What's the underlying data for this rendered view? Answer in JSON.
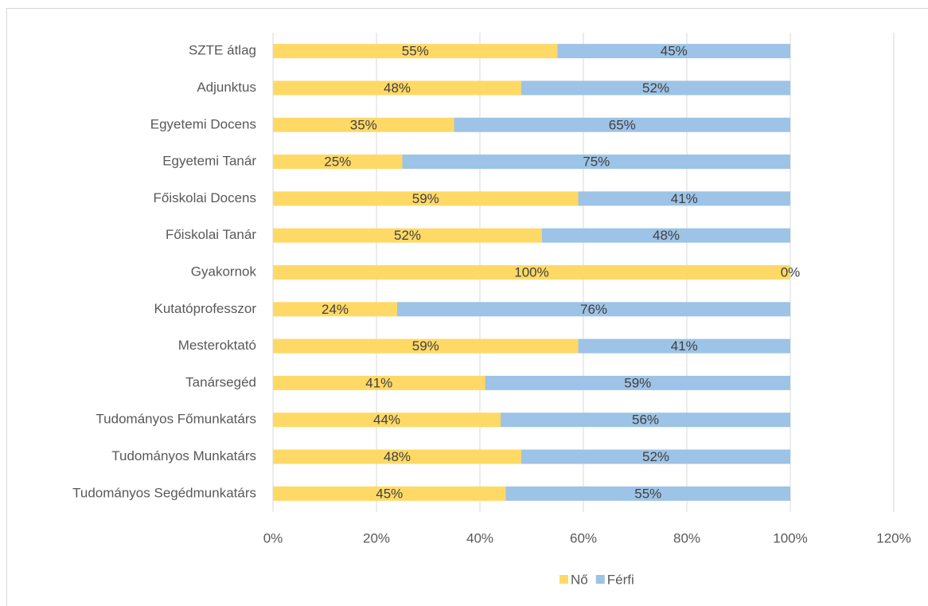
{
  "chart_data": {
    "type": "stacked_bar_horizontal",
    "categories": [
      "SZTE átlag",
      "Adjunktus",
      "Egyetemi Docens",
      "Egyetemi Tanár",
      "Főiskolai Docens",
      "Főiskolai Tanár",
      "Gyakornok",
      "Kutatóprofesszor",
      "Mesteroktató",
      "Tanársegéd",
      "Tudományos Főmunkatárs",
      "Tudományos Munkatárs",
      "Tudományos Segédmunkatárs"
    ],
    "series": [
      {
        "name": "Nő",
        "color": "#FFD966",
        "values": [
          55,
          48,
          35,
          25,
          59,
          52,
          100,
          24,
          59,
          41,
          44,
          48,
          45
        ],
        "value_labels": [
          "55%",
          "48%",
          "35%",
          "25%",
          "59%",
          "52%",
          "100%",
          "24%",
          "59%",
          "41%",
          "44%",
          "48%",
          "45%"
        ]
      },
      {
        "name": "Férfi",
        "color": "#9DC3E6",
        "values": [
          45,
          52,
          65,
          75,
          41,
          48,
          0,
          76,
          41,
          59,
          56,
          52,
          55
        ],
        "value_labels": [
          "45%",
          "52%",
          "65%",
          "75%",
          "41%",
          "48%",
          "0%",
          "76%",
          "41%",
          "59%",
          "56%",
          "52%",
          "55%"
        ]
      }
    ],
    "xlim": [
      0,
      120
    ],
    "xticks": [
      {
        "value": 0,
        "label": "0%"
      },
      {
        "value": 20,
        "label": "20%"
      },
      {
        "value": 40,
        "label": "40%"
      },
      {
        "value": 60,
        "label": "60%"
      },
      {
        "value": 80,
        "label": "80%"
      },
      {
        "value": 100,
        "label": "100%"
      },
      {
        "value": 120,
        "label": "120%"
      }
    ],
    "grid": true,
    "legend": "bottom"
  }
}
